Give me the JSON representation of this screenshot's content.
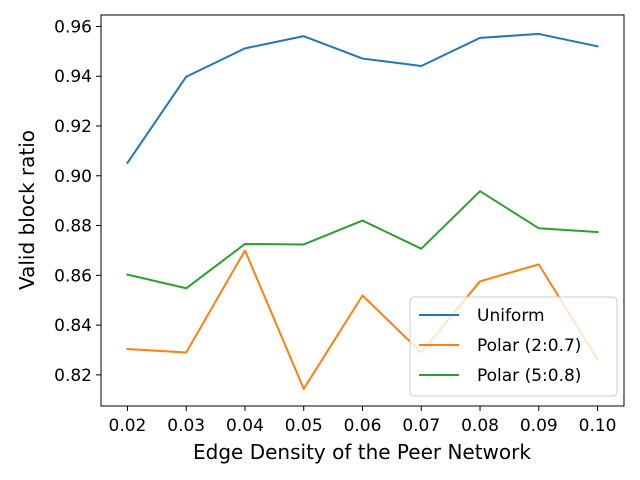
{
  "chart_data": {
    "type": "line",
    "xlabel": "Edge Density of the Peer Network",
    "ylabel": "Valid block ratio",
    "x": [
      0.02,
      0.03,
      0.04,
      0.05,
      0.06,
      0.07,
      0.08,
      0.09,
      0.1
    ],
    "x_tick_labels": [
      "0.02",
      "0.03",
      "0.04",
      "0.05",
      "0.06",
      "0.07",
      "0.08",
      "0.09",
      "0.10"
    ],
    "y_ticks": [
      0.82,
      0.84,
      0.86,
      0.88,
      0.9,
      0.92,
      0.94,
      0.96
    ],
    "y_tick_labels": [
      "0.82",
      "0.84",
      "0.86",
      "0.88",
      "0.90",
      "0.92",
      "0.94",
      "0.96"
    ],
    "xlim": [
      0.0155,
      0.1045
    ],
    "ylim": [
      0.8075,
      0.9646
    ],
    "grid": false,
    "legend_position": "lower-right",
    "series": [
      {
        "name": "Uniform",
        "color": "#1f77b4",
        "values": [
          0.9052,
          0.9398,
          0.9512,
          0.9561,
          0.9471,
          0.9441,
          0.9554,
          0.957,
          0.952
        ]
      },
      {
        "name": "Polar (2:0.7)",
        "color": "#ff7f0e",
        "values": [
          0.8304,
          0.829,
          0.87,
          0.8144,
          0.8519,
          0.829,
          0.8576,
          0.8644,
          0.8262
        ]
      },
      {
        "name": "Polar (5:0.8)",
        "color": "#2ca02c",
        "values": [
          0.8603,
          0.8548,
          0.8726,
          0.8724,
          0.882,
          0.8707,
          0.8938,
          0.8789,
          0.8774
        ]
      }
    ]
  }
}
